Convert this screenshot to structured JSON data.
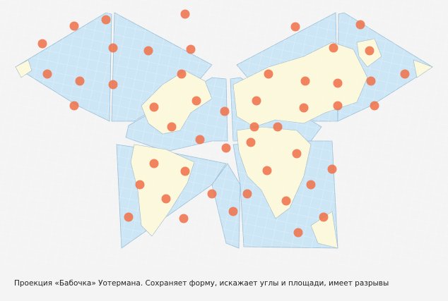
{
  "caption": {
    "text": "Проекция «Бабочка» Уотермана. Сохраняет форму, искажает углы и площади, имеет разрывы"
  }
}
